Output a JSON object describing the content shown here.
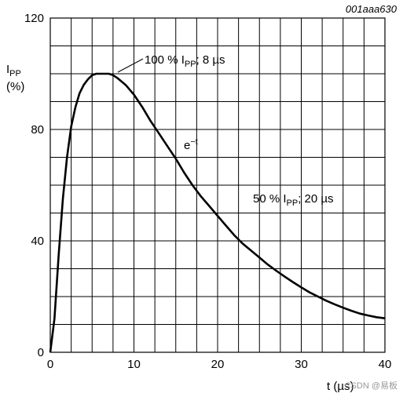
{
  "chart_data": {
    "type": "line",
    "reference_code": "001aaa630",
    "ylabel_main": "I",
    "ylabel_sub": "PP",
    "ylabel_unit": "(%)",
    "xlabel": "t (µs)",
    "xlim": [
      0,
      40
    ],
    "ylim": [
      0,
      120
    ],
    "x_ticks": [
      0,
      10,
      20,
      30,
      40
    ],
    "y_ticks": [
      0,
      40,
      80,
      120
    ],
    "x_grid_step": 2.5,
    "y_grid_step": 10,
    "grid": true,
    "series": [
      {
        "x": [
          0,
          0.5,
          1,
          1.5,
          2,
          2.5,
          3,
          3.5,
          4,
          4.5,
          5,
          5.5,
          6,
          6.5,
          7,
          7.5,
          8,
          9,
          10,
          11,
          12,
          13,
          14,
          15,
          16,
          17,
          18,
          19,
          20,
          21,
          22,
          23,
          24,
          25,
          26,
          27,
          28,
          29,
          30,
          31,
          32,
          33,
          34,
          35,
          36,
          37,
          38,
          39,
          40
        ],
        "y": [
          0,
          12,
          35,
          55,
          70,
          81,
          88,
          93,
          96,
          98,
          99.5,
          100,
          100,
          100,
          100,
          99.5,
          98.5,
          96,
          92.5,
          88,
          83,
          78.5,
          74,
          69.5,
          64.5,
          60,
          56,
          52.5,
          49,
          45.5,
          42,
          39,
          36.5,
          34,
          31.5,
          29.3,
          27.2,
          25.2,
          23.3,
          21.5,
          20,
          18.5,
          17.2,
          16,
          14.9,
          13.9,
          13.2,
          12.6,
          12.2
        ]
      }
    ],
    "annotations": [
      {
        "text_main": "100 % I",
        "text_sub": "PP",
        "text_tail": "; 8 µs",
        "x": 7,
        "y": 100
      },
      {
        "text_main": "e",
        "text_sup": "−t",
        "x": 16,
        "y": 74
      },
      {
        "text_main": "50 % I",
        "text_sub": "PP",
        "text_tail": "; 20 µs",
        "x": 20,
        "y": 50
      }
    ]
  },
  "watermark": "CSDN @易板"
}
